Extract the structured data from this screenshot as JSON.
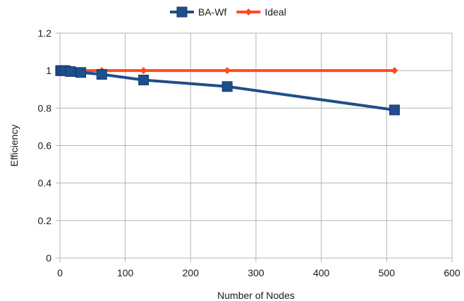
{
  "chart_data": {
    "type": "line",
    "xlabel": "Number of Nodes",
    "ylabel": "Efficiency",
    "xlim": [
      0,
      600
    ],
    "ylim": [
      0,
      1.2
    ],
    "xticks": [
      "0",
      "100",
      "200",
      "300",
      "400",
      "500",
      "600"
    ],
    "yticks": [
      "0",
      "0.2",
      "0.4",
      "0.6",
      "0.8",
      "1",
      "1.2"
    ],
    "grid": true,
    "legend_position": "top",
    "series": [
      {
        "name": "BA-Wf",
        "color": "#1f4e8c",
        "marker": "square",
        "x": [
          1,
          2,
          4,
          8,
          16,
          32,
          64,
          128,
          256,
          512
        ],
        "y": [
          1.0,
          1.0,
          1.0,
          1.0,
          0.995,
          0.99,
          0.98,
          0.95,
          0.915,
          0.79
        ]
      },
      {
        "name": "Ideal",
        "color": "#ff4a1c",
        "marker": "diamond",
        "x": [
          1,
          2,
          4,
          8,
          16,
          32,
          64,
          128,
          256,
          512
        ],
        "y": [
          1,
          1,
          1,
          1,
          1,
          1,
          1,
          1,
          1,
          1
        ]
      }
    ]
  }
}
